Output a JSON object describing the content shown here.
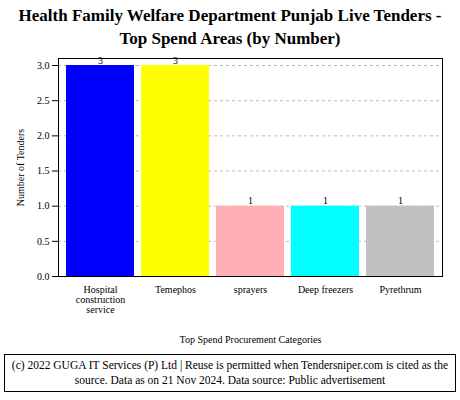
{
  "chart_data": {
    "type": "bar",
    "title": "Health Family Welfare Department Punjab Live Tenders - Top Spend Areas (by Number)",
    "x_label": "Top Spend Procurement Categories",
    "y_label": "Number of Tenders",
    "categories": [
      "Hospital construction service",
      "Temephos",
      "sprayers",
      "Deep freezers",
      "Pyrethrum"
    ],
    "values": [
      3,
      3,
      1,
      1,
      1
    ],
    "colors": [
      "#0000ff",
      "#ffff00",
      "#ffb0b5",
      "#00ffff",
      "#c0c0c0"
    ],
    "ylim": [
      0,
      3.1
    ],
    "yticks": [
      {
        "value": 0,
        "label": "0.0"
      },
      {
        "value": 0.5,
        "label": "0.5"
      },
      {
        "value": 1,
        "label": "1.0"
      },
      {
        "value": 1.5,
        "label": "1.5"
      },
      {
        "value": 2,
        "label": "2.0"
      },
      {
        "value": 2.5,
        "label": "2.5"
      },
      {
        "value": 3,
        "label": "3.0"
      }
    ],
    "grid": true,
    "data_labels": true,
    "caption": "(c) 2022 GUGA IT Services (P) Ltd | Reuse is permitted when Tendersniper.com is cited as the source. Data as on 21 Nov 2024. Data source: Public advertisement"
  }
}
